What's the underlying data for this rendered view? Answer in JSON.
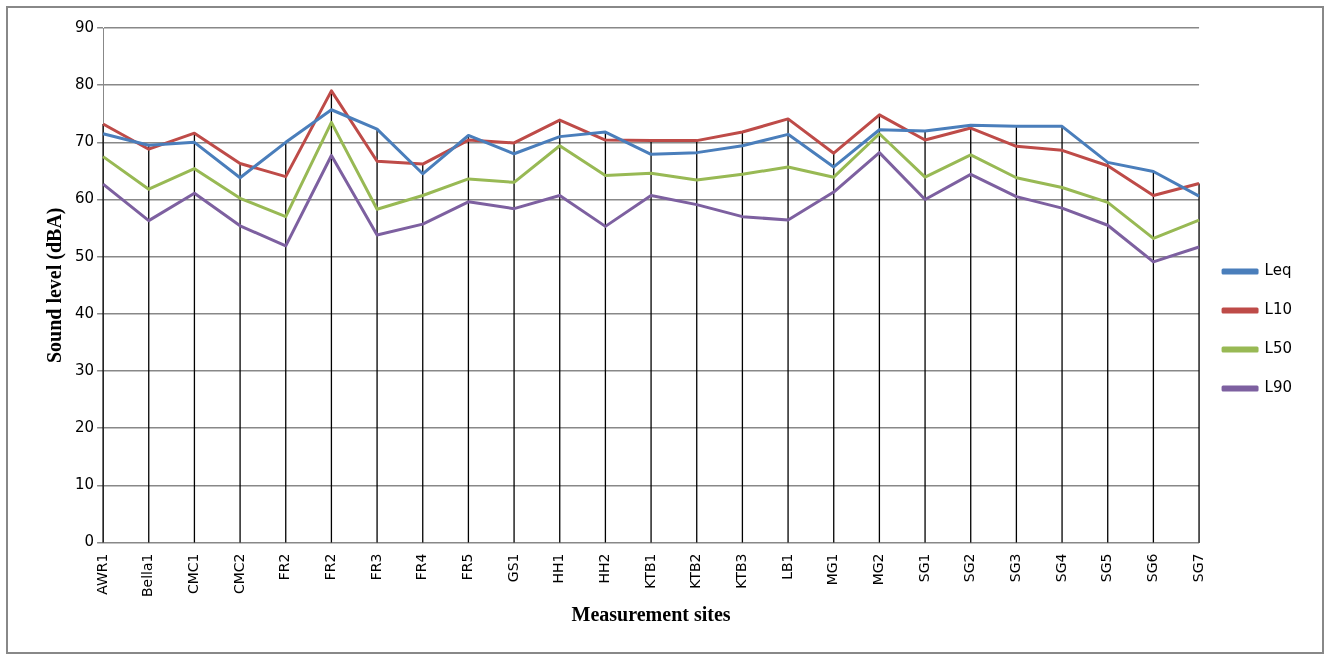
{
  "chart_data": {
    "type": "line",
    "xlabel": "Measurement sites",
    "ylabel": "Sound level (dBA)",
    "categories": [
      "AWR1",
      "Bella1",
      "CMC1",
      "CMC2",
      "FR2",
      "FR2",
      "FR3",
      "FR4",
      "FR5",
      "GS1",
      "HH1",
      "HH2",
      "KTB1",
      "KTB2",
      "KTB3",
      "LB1",
      "MG1",
      "MG2",
      "SG1",
      "SG2",
      "SG3",
      "SG4",
      "SG5",
      "SG6",
      "SG7"
    ],
    "series": [
      {
        "name": "Leq",
        "color": "#4a7ebb",
        "values": [
          71.5,
          69.5,
          70,
          63.8,
          70,
          75.7,
          72.3,
          64.5,
          71.2,
          68,
          71,
          71.8,
          67.9,
          68.2,
          69.4,
          71.4,
          65.7,
          72.2,
          72,
          73,
          72.8,
          72.8,
          66.5,
          64.9,
          60.6
        ]
      },
      {
        "name": "L10",
        "color": "#be4b48",
        "values": [
          73.2,
          68.8,
          71.6,
          66.3,
          64,
          79,
          66.7,
          66.2,
          70.4,
          69.9,
          73.9,
          70.4,
          70.3,
          70.3,
          71.8,
          74.1,
          68.1,
          74.8,
          70.4,
          72.5,
          69.3,
          68.6,
          65.9,
          60.7,
          62.8
        ]
      },
      {
        "name": "L50",
        "color": "#98b954",
        "values": [
          67.5,
          61.8,
          65.4,
          60.2,
          57,
          73.5,
          58.3,
          60.7,
          63.6,
          63,
          69.4,
          64.2,
          64.6,
          63.4,
          64.4,
          65.7,
          63.9,
          71.5,
          63.9,
          67.8,
          63.8,
          62.1,
          59.5,
          53.2,
          56.4
        ]
      },
      {
        "name": "L90",
        "color": "#7d60a0",
        "values": [
          62.7,
          56.3,
          61.1,
          55.4,
          51.9,
          67.7,
          53.8,
          55.7,
          59.6,
          58.4,
          60.7,
          55.3,
          60.7,
          59.1,
          57,
          56.4,
          61.3,
          68.2,
          60,
          64.4,
          60.5,
          58.5,
          55.5,
          49.1,
          51.7
        ]
      }
    ],
    "ylim": [
      0,
      90
    ],
    "yticks": [
      0,
      10,
      20,
      30,
      40,
      50,
      60,
      70,
      80,
      90
    ],
    "grid": true,
    "legend": "right",
    "marker": "none",
    "line_style": "solid"
  }
}
